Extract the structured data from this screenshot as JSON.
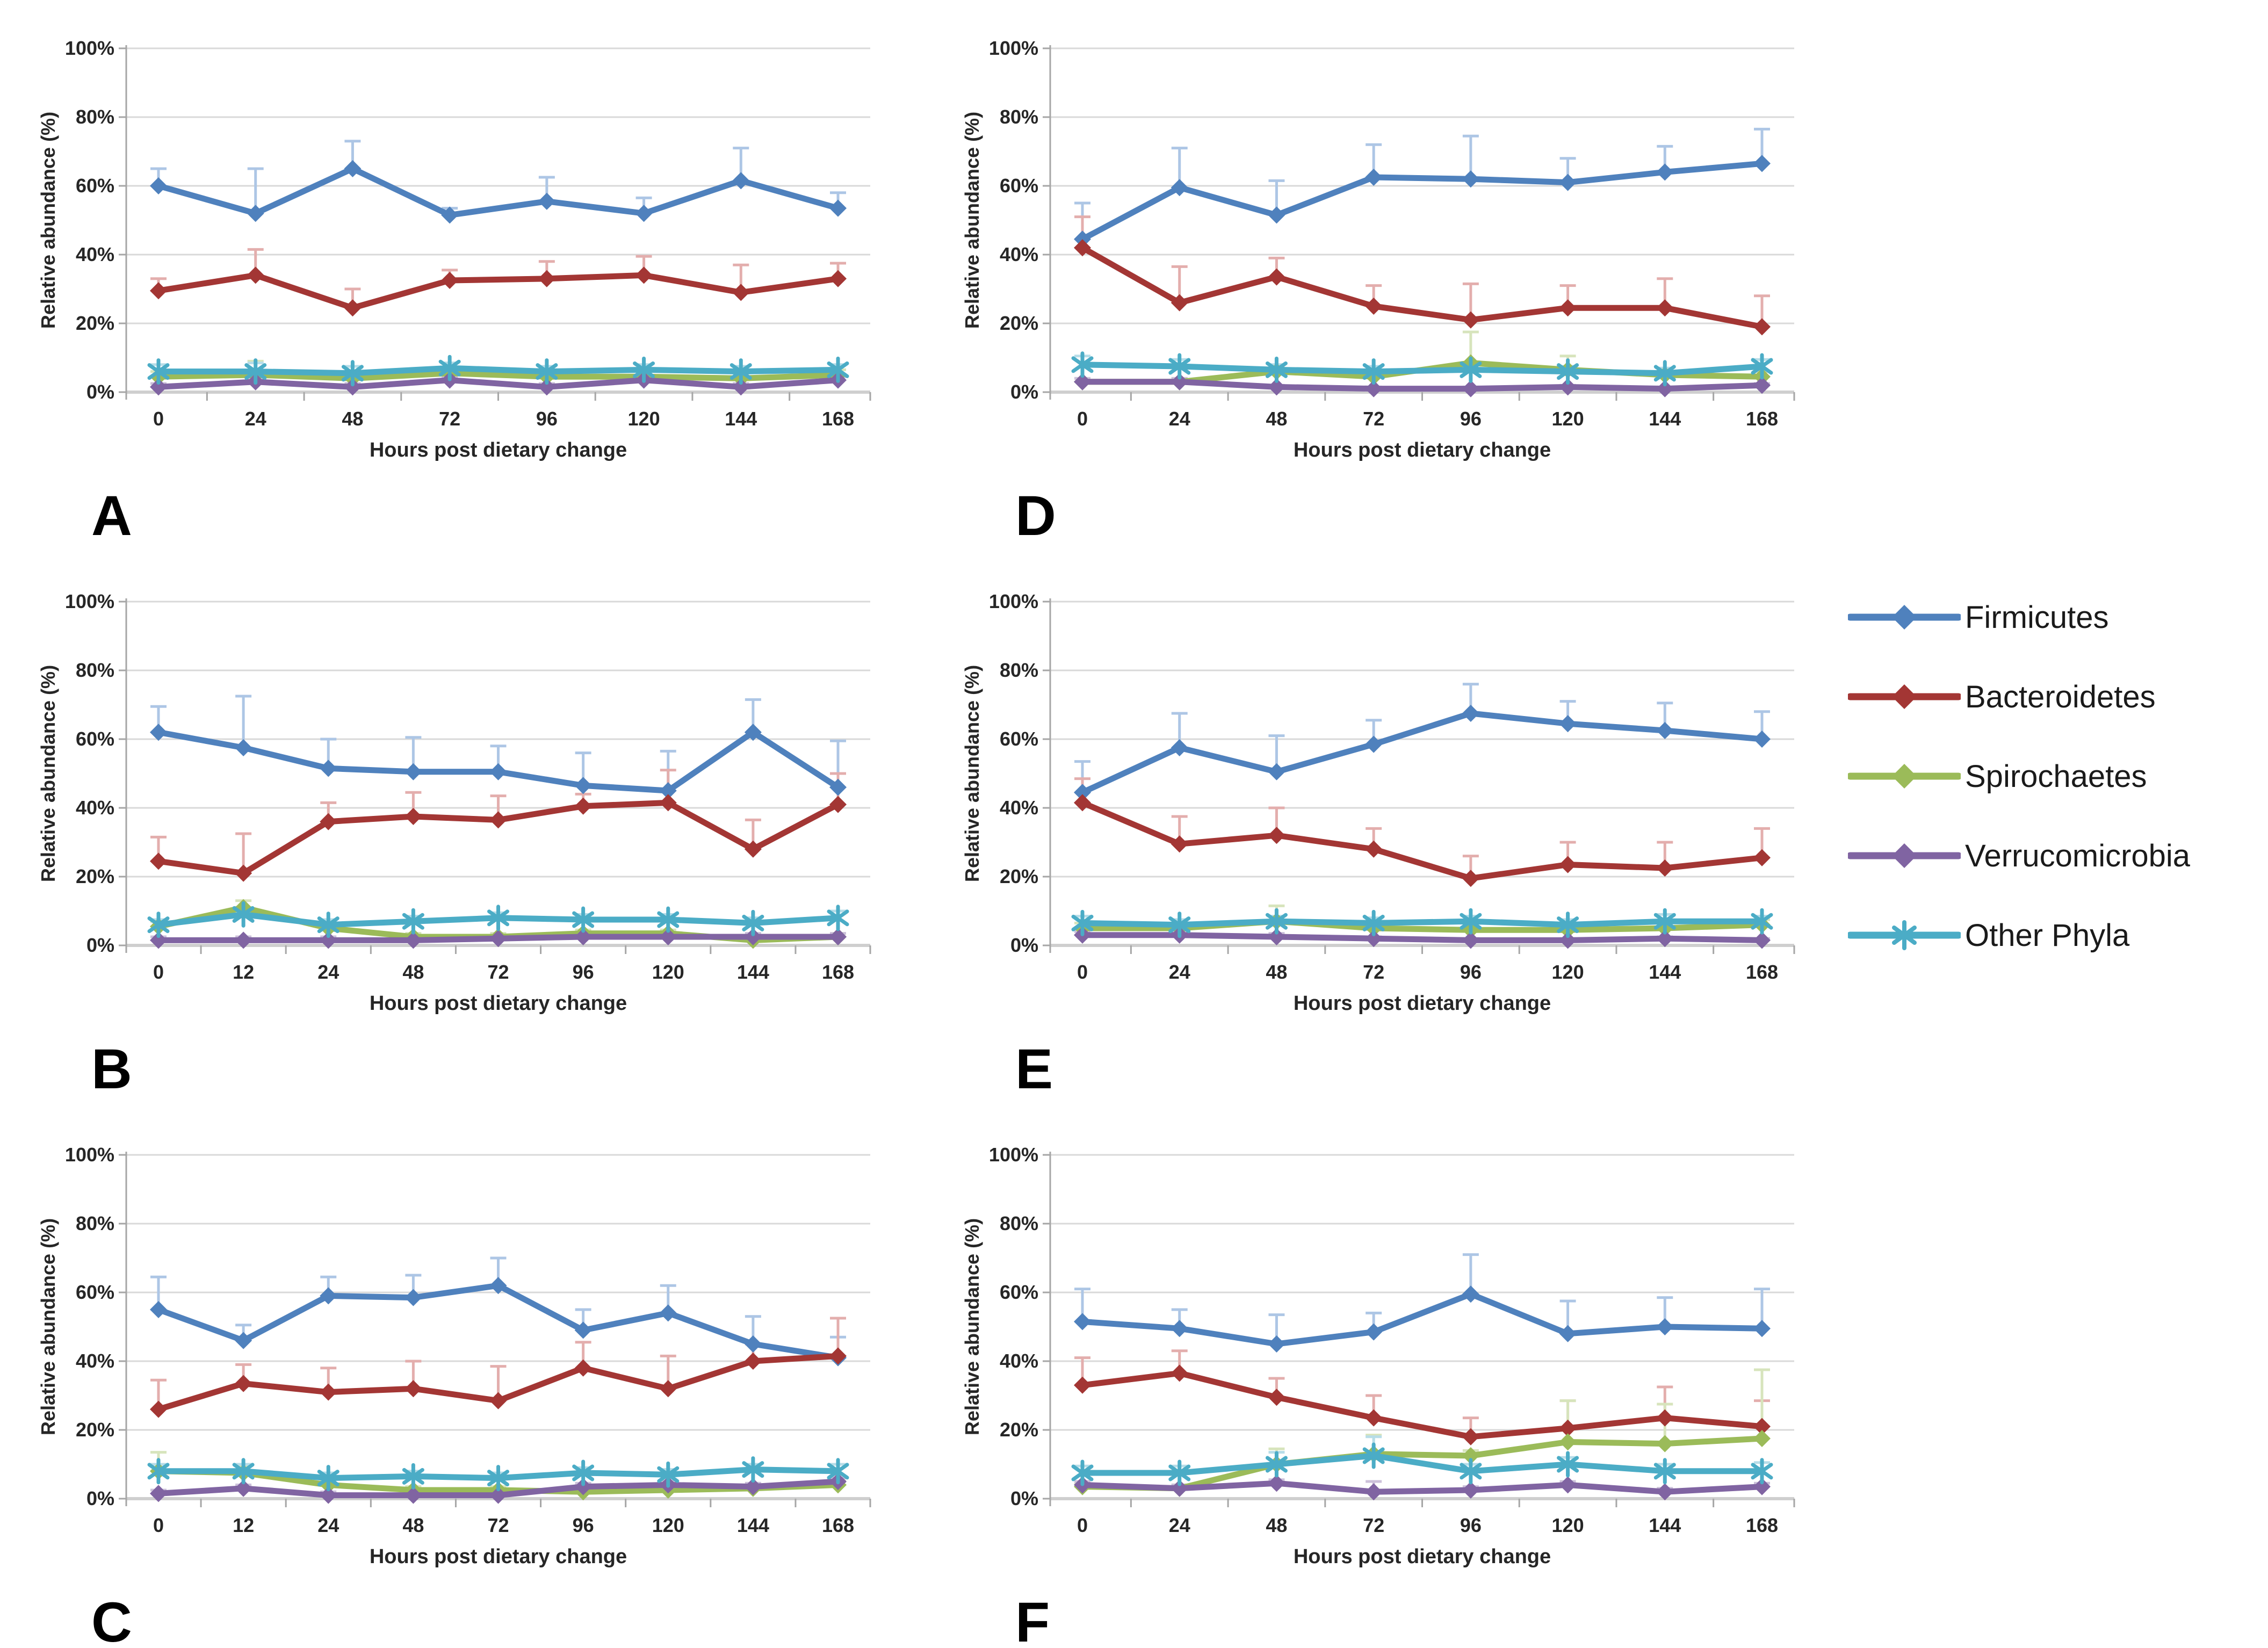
{
  "axis": {
    "ylabel": "Relative abundance (%)",
    "xlabel": "Hours post dietary change",
    "yticks": [
      "0%",
      "20%",
      "40%",
      "60%",
      "80%",
      "100%"
    ],
    "ylim": [
      0,
      100
    ],
    "grid": "horizontal",
    "gridline_color": "#D9D9D9",
    "axisline_color": "#A6A6A6",
    "text_color": "#262626"
  },
  "legend": {
    "position": "right",
    "items": [
      {
        "label": "Firmicutes",
        "color": "#4F81BD",
        "light": "#ADC6E5",
        "marker": "diamond"
      },
      {
        "label": "Bacteroidetes",
        "color": "#A33634",
        "light": "#E3AEAD",
        "marker": "diamond"
      },
      {
        "label": "Spirochaetes",
        "color": "#9BBB59",
        "light": "#D7E4BC",
        "marker": "diamond"
      },
      {
        "label": "Verrucomicrobia",
        "color": "#8064A2",
        "light": "#CCC1DA",
        "marker": "diamond"
      },
      {
        "label": "Other Phyla",
        "color": "#4BACC6",
        "light": "#B7DDE8",
        "marker": "star"
      }
    ]
  },
  "chart_data": [
    {
      "panel": "A",
      "type": "line",
      "title": "",
      "xlabel": "Hours post dietary change",
      "ylabel": "Relative abundance (%)",
      "ylim": [
        0,
        100
      ],
      "categories": [
        0,
        24,
        48,
        72,
        96,
        120,
        144,
        168
      ],
      "series": [
        {
          "name": "Firmicutes",
          "values": [
            60,
            52,
            65,
            51.5,
            55.5,
            52,
            61.5,
            53.5
          ],
          "errors_up": [
            5,
            13,
            8,
            2,
            7,
            4.5,
            9.5,
            4.5
          ]
        },
        {
          "name": "Bacteroidetes",
          "values": [
            29.5,
            34,
            24.5,
            32.5,
            33,
            34,
            29,
            33
          ],
          "errors_up": [
            3.5,
            7.5,
            5.5,
            3,
            5,
            5.5,
            8,
            4.5
          ]
        },
        {
          "name": "Spirochaetes",
          "values": [
            4.5,
            5,
            4,
            5.5,
            4.5,
            4.5,
            4,
            5
          ],
          "errors_up": [
            1.5,
            4,
            1.5,
            1.5,
            1.5,
            1.5,
            1.5,
            1.5
          ]
        },
        {
          "name": "Verrucomicrobia",
          "values": [
            1.5,
            3,
            1.5,
            3.5,
            1.5,
            3.5,
            1.5,
            3.5
          ],
          "errors_up": [
            1,
            1,
            1,
            1,
            1,
            1,
            1,
            1
          ]
        },
        {
          "name": "Other Phyla",
          "values": [
            6,
            6,
            5.5,
            7,
            6,
            6.5,
            6,
            6.5
          ],
          "errors_up": [
            2,
            2.5,
            2,
            1.5,
            1.5,
            1.5,
            1.5,
            1.5
          ]
        }
      ]
    },
    {
      "panel": "B",
      "type": "line",
      "title": "",
      "xlabel": "Hours post dietary change",
      "ylabel": "Relative abundance (%)",
      "ylim": [
        0,
        100
      ],
      "categories": [
        0,
        12,
        24,
        48,
        72,
        96,
        120,
        144,
        168
      ],
      "series": [
        {
          "name": "Firmicutes",
          "values": [
            62,
            57.5,
            51.5,
            50.5,
            50.5,
            46.5,
            45,
            62,
            46
          ],
          "errors_up": [
            7.5,
            15,
            8.5,
            10,
            7.5,
            9.5,
            11.5,
            9.5,
            13.5
          ]
        },
        {
          "name": "Bacteroidetes",
          "values": [
            24.5,
            21,
            36,
            37.5,
            36.5,
            40.5,
            41.5,
            28,
            41
          ],
          "errors_up": [
            7,
            11.5,
            5.5,
            7,
            7,
            3.5,
            9.5,
            8.5,
            9
          ]
        },
        {
          "name": "Spirochaetes",
          "values": [
            5.5,
            11,
            5,
            2.5,
            2.5,
            3.5,
            3.5,
            1.5,
            2.5
          ],
          "errors_up": [
            1.5,
            2,
            1.5,
            1,
            1,
            1,
            1,
            1,
            1
          ]
        },
        {
          "name": "Verrucomicrobia",
          "values": [
            1.5,
            1.5,
            1.5,
            1.5,
            2,
            2.5,
            2.5,
            2.5,
            2.5
          ],
          "errors_up": [
            1,
            1,
            1,
            1,
            1,
            1,
            1,
            1,
            1
          ]
        },
        {
          "name": "Other Phyla",
          "values": [
            6,
            9,
            6,
            7,
            8,
            7.5,
            7.5,
            6.5,
            8
          ],
          "errors_up": [
            1.5,
            1.5,
            1.5,
            1.5,
            1.5,
            1.5,
            1.5,
            1.5,
            2
          ]
        }
      ]
    },
    {
      "panel": "C",
      "type": "line",
      "title": "",
      "xlabel": "Hours post dietary change",
      "ylabel": "Relative abundance (%)",
      "ylim": [
        0,
        100
      ],
      "categories": [
        0,
        12,
        24,
        48,
        72,
        96,
        120,
        144,
        168
      ],
      "series": [
        {
          "name": "Firmicutes",
          "values": [
            55,
            46,
            59,
            58.5,
            62,
            49,
            54,
            45,
            41
          ],
          "errors_up": [
            9.5,
            4.5,
            5.5,
            6.5,
            8,
            6,
            8,
            8,
            6
          ]
        },
        {
          "name": "Bacteroidetes",
          "values": [
            26,
            33.5,
            31,
            32,
            28.5,
            38,
            32,
            40,
            41.5
          ],
          "errors_up": [
            8.5,
            5.5,
            7,
            8,
            10,
            7.5,
            9.5,
            5,
            11
          ]
        },
        {
          "name": "Spirochaetes",
          "values": [
            8,
            7.5,
            4,
            2.5,
            2.5,
            2,
            2.5,
            3,
            4
          ],
          "errors_up": [
            5.5,
            2,
            1.5,
            1,
            1,
            1,
            1,
            1,
            1
          ]
        },
        {
          "name": "Verrucomicrobia",
          "values": [
            1.5,
            3,
            1,
            1,
            1,
            3.5,
            4,
            3.5,
            5
          ],
          "errors_up": [
            1,
            1,
            1,
            1,
            1,
            1,
            1,
            1,
            1
          ]
        },
        {
          "name": "Other Phyla",
          "values": [
            8,
            8,
            6,
            6.5,
            6,
            7.5,
            7,
            8.5,
            8
          ],
          "errors_up": [
            2,
            2,
            1.5,
            1.5,
            1.5,
            1.5,
            1.5,
            1.5,
            2
          ]
        }
      ]
    },
    {
      "panel": "D",
      "type": "line",
      "title": "",
      "xlabel": "Hours post dietary change",
      "ylabel": "Relative abundance (%)",
      "ylim": [
        0,
        100
      ],
      "categories": [
        0,
        24,
        48,
        72,
        96,
        120,
        144,
        168
      ],
      "series": [
        {
          "name": "Firmicutes",
          "values": [
            44.5,
            59.5,
            51.5,
            62.5,
            62,
            61,
            64,
            66.5
          ],
          "errors_up": [
            10.5,
            11.5,
            10,
            9.5,
            12.5,
            7,
            7.5,
            10
          ]
        },
        {
          "name": "Bacteroidetes",
          "values": [
            42,
            26,
            33.5,
            25,
            21,
            24.5,
            24.5,
            19
          ],
          "errors_up": [
            9,
            10.5,
            5.5,
            6,
            10.5,
            6.5,
            8.5,
            9
          ]
        },
        {
          "name": "Spirochaetes",
          "values": [
            3,
            3,
            6,
            4.5,
            8.5,
            6.5,
            5,
            4.5
          ],
          "errors_up": [
            1,
            1,
            1.5,
            1.5,
            9,
            4,
            1.5,
            1.5
          ]
        },
        {
          "name": "Verrucomicrobia",
          "values": [
            3,
            3,
            1.5,
            1,
            1,
            1.5,
            1,
            2
          ],
          "errors_up": [
            1,
            1,
            0.5,
            0.5,
            0.5,
            0.5,
            0.5,
            0.5
          ]
        },
        {
          "name": "Other Phyla",
          "values": [
            8,
            7.5,
            6.5,
            6,
            6.5,
            6,
            5.5,
            7.5
          ],
          "errors_up": [
            2.5,
            2,
            1.5,
            1.5,
            1.5,
            1.5,
            1.5,
            2
          ]
        }
      ]
    },
    {
      "panel": "E",
      "type": "line",
      "title": "",
      "xlabel": "Hours post dietary change",
      "ylabel": "Relative abundance (%)",
      "ylim": [
        0,
        100
      ],
      "categories": [
        0,
        24,
        48,
        72,
        96,
        120,
        144,
        168
      ],
      "series": [
        {
          "name": "Firmicutes",
          "values": [
            44.5,
            57.5,
            50.5,
            58.5,
            67.5,
            64.5,
            62.5,
            60
          ],
          "errors_up": [
            9,
            10,
            10.5,
            7,
            8.5,
            6.5,
            8,
            8
          ]
        },
        {
          "name": "Bacteroidetes",
          "values": [
            41.5,
            29.5,
            32,
            28,
            19.5,
            23.5,
            22.5,
            25.5
          ],
          "errors_up": [
            7,
            8,
            8,
            6,
            6.5,
            6.5,
            7.5,
            8.5
          ]
        },
        {
          "name": "Spirochaetes",
          "values": [
            5,
            5,
            7,
            5,
            4.5,
            4.5,
            5,
            6
          ],
          "errors_up": [
            1.5,
            1.5,
            4.5,
            1.5,
            1.5,
            1.5,
            1.5,
            1.5
          ]
        },
        {
          "name": "Verrucomicrobia",
          "values": [
            3,
            3,
            2.5,
            2,
            1.5,
            1.5,
            2,
            1.5
          ],
          "errors_up": [
            1,
            1,
            1,
            0.5,
            0.5,
            0.5,
            0.5,
            0.5
          ]
        },
        {
          "name": "Other Phyla",
          "values": [
            6.5,
            6,
            7,
            6.5,
            7,
            6,
            7,
            7
          ],
          "errors_up": [
            2,
            1.5,
            1.5,
            1.5,
            1.5,
            1.5,
            2,
            1.5
          ]
        }
      ]
    },
    {
      "panel": "F",
      "type": "line",
      "title": "",
      "xlabel": "Hours post dietary change",
      "ylabel": "Relative abundance (%)",
      "ylim": [
        0,
        100
      ],
      "categories": [
        0,
        24,
        48,
        72,
        96,
        120,
        144,
        168
      ],
      "series": [
        {
          "name": "Firmicutes",
          "values": [
            51.5,
            49.5,
            45,
            48.5,
            59.5,
            48,
            50,
            49.5
          ],
          "errors_up": [
            9.5,
            5.5,
            8.5,
            5.5,
            11.5,
            9.5,
            8.5,
            11.5
          ]
        },
        {
          "name": "Bacteroidetes",
          "values": [
            33,
            36.5,
            29.5,
            23.5,
            18,
            20.5,
            23.5,
            21
          ],
          "errors_up": [
            8,
            6.5,
            5.5,
            6.5,
            5.5,
            8,
            9,
            7.5
          ]
        },
        {
          "name": "Spirochaetes",
          "values": [
            3.5,
            3,
            10,
            13,
            12.5,
            16.5,
            16,
            17.5
          ],
          "errors_up": [
            1,
            1,
            4.5,
            5.5,
            1.5,
            12,
            11.5,
            20
          ]
        },
        {
          "name": "Verrucomicrobia",
          "values": [
            4,
            3,
            4.5,
            2,
            2.5,
            4,
            2,
            3.5
          ],
          "errors_up": [
            1,
            1,
            1,
            3,
            1,
            1,
            1,
            1
          ]
        },
        {
          "name": "Other Phyla",
          "values": [
            7.5,
            7.5,
            10,
            12.5,
            8,
            10,
            8,
            8
          ],
          "errors_up": [
            2,
            2,
            3.5,
            5.5,
            2,
            2,
            2,
            2.5
          ]
        }
      ]
    }
  ]
}
